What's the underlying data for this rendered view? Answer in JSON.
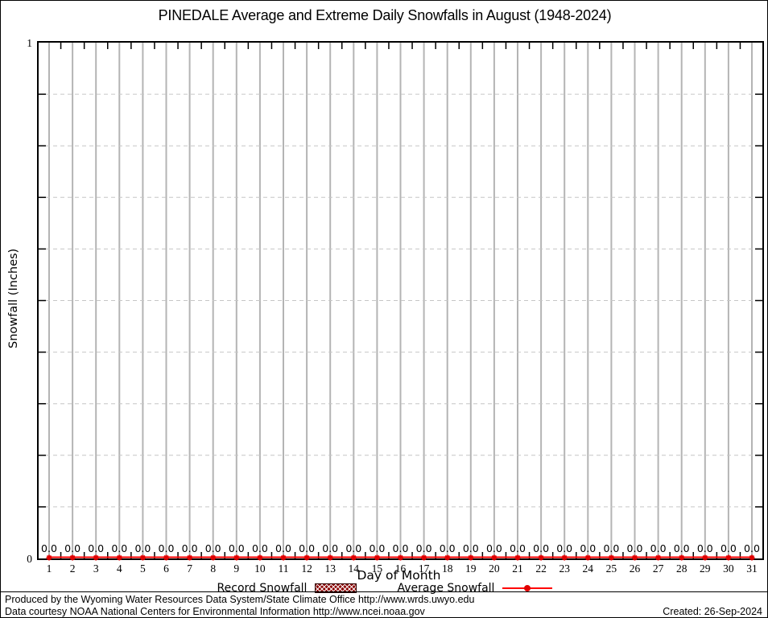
{
  "chart_data": {
    "type": "line",
    "title": "PINEDALE Average and Extreme Daily Snowfalls in August (1948-2024)",
    "xlabel": "Day of Month",
    "ylabel": "Snowfall (Inches)",
    "xlim": [
      1,
      31
    ],
    "ylim": [
      0,
      1
    ],
    "x": [
      1,
      2,
      3,
      4,
      5,
      6,
      7,
      8,
      9,
      10,
      11,
      12,
      13,
      14,
      15,
      16,
      17,
      18,
      19,
      20,
      21,
      22,
      23,
      24,
      25,
      26,
      27,
      28,
      29,
      30,
      31
    ],
    "series": [
      {
        "name": "Record Snowfall",
        "style": "boxes-hatched",
        "color": "#8b0000",
        "values": [
          0.0,
          0.0,
          0.0,
          0.0,
          0.0,
          0.0,
          0.0,
          0.0,
          0.0,
          0.0,
          0.0,
          0.0,
          0.0,
          0.0,
          0.0,
          0.0,
          0.0,
          0.0,
          0.0,
          0.0,
          0.0,
          0.0,
          0.0,
          0.0,
          0.0,
          0.0,
          0.0,
          0.0,
          0.0,
          0.0,
          0.0
        ]
      },
      {
        "name": "Average Snowfall",
        "style": "linespoints",
        "color": "#ff0000",
        "values": [
          0.0,
          0.0,
          0.0,
          0.0,
          0.0,
          0.0,
          0.0,
          0.0,
          0.0,
          0.0,
          0.0,
          0.0,
          0.0,
          0.0,
          0.0,
          0.0,
          0.0,
          0.0,
          0.0,
          0.0,
          0.0,
          0.0,
          0.0,
          0.0,
          0.0,
          0.0,
          0.0,
          0.0,
          0.0,
          0.0,
          0.0
        ]
      }
    ],
    "point_label_decimals": 1,
    "y_axis": {
      "labeled_ticks": [
        "0",
        "1"
      ],
      "minor_interval": 0.1,
      "grid": "dashed"
    },
    "x_axis": {
      "grid": "solid-per-day",
      "minor_ticks": "half-day"
    },
    "legend_position": "below-x-label"
  },
  "footer": {
    "line1": "Produced by the Wyoming Water Resources Data System/State Climate Office http://www.wrds.uwyo.edu",
    "line2": "Data courtesy NOAA National Centers for Environmental Information http://www.ncei.noaa.gov",
    "created": "Created: 26-Sep-2024"
  }
}
